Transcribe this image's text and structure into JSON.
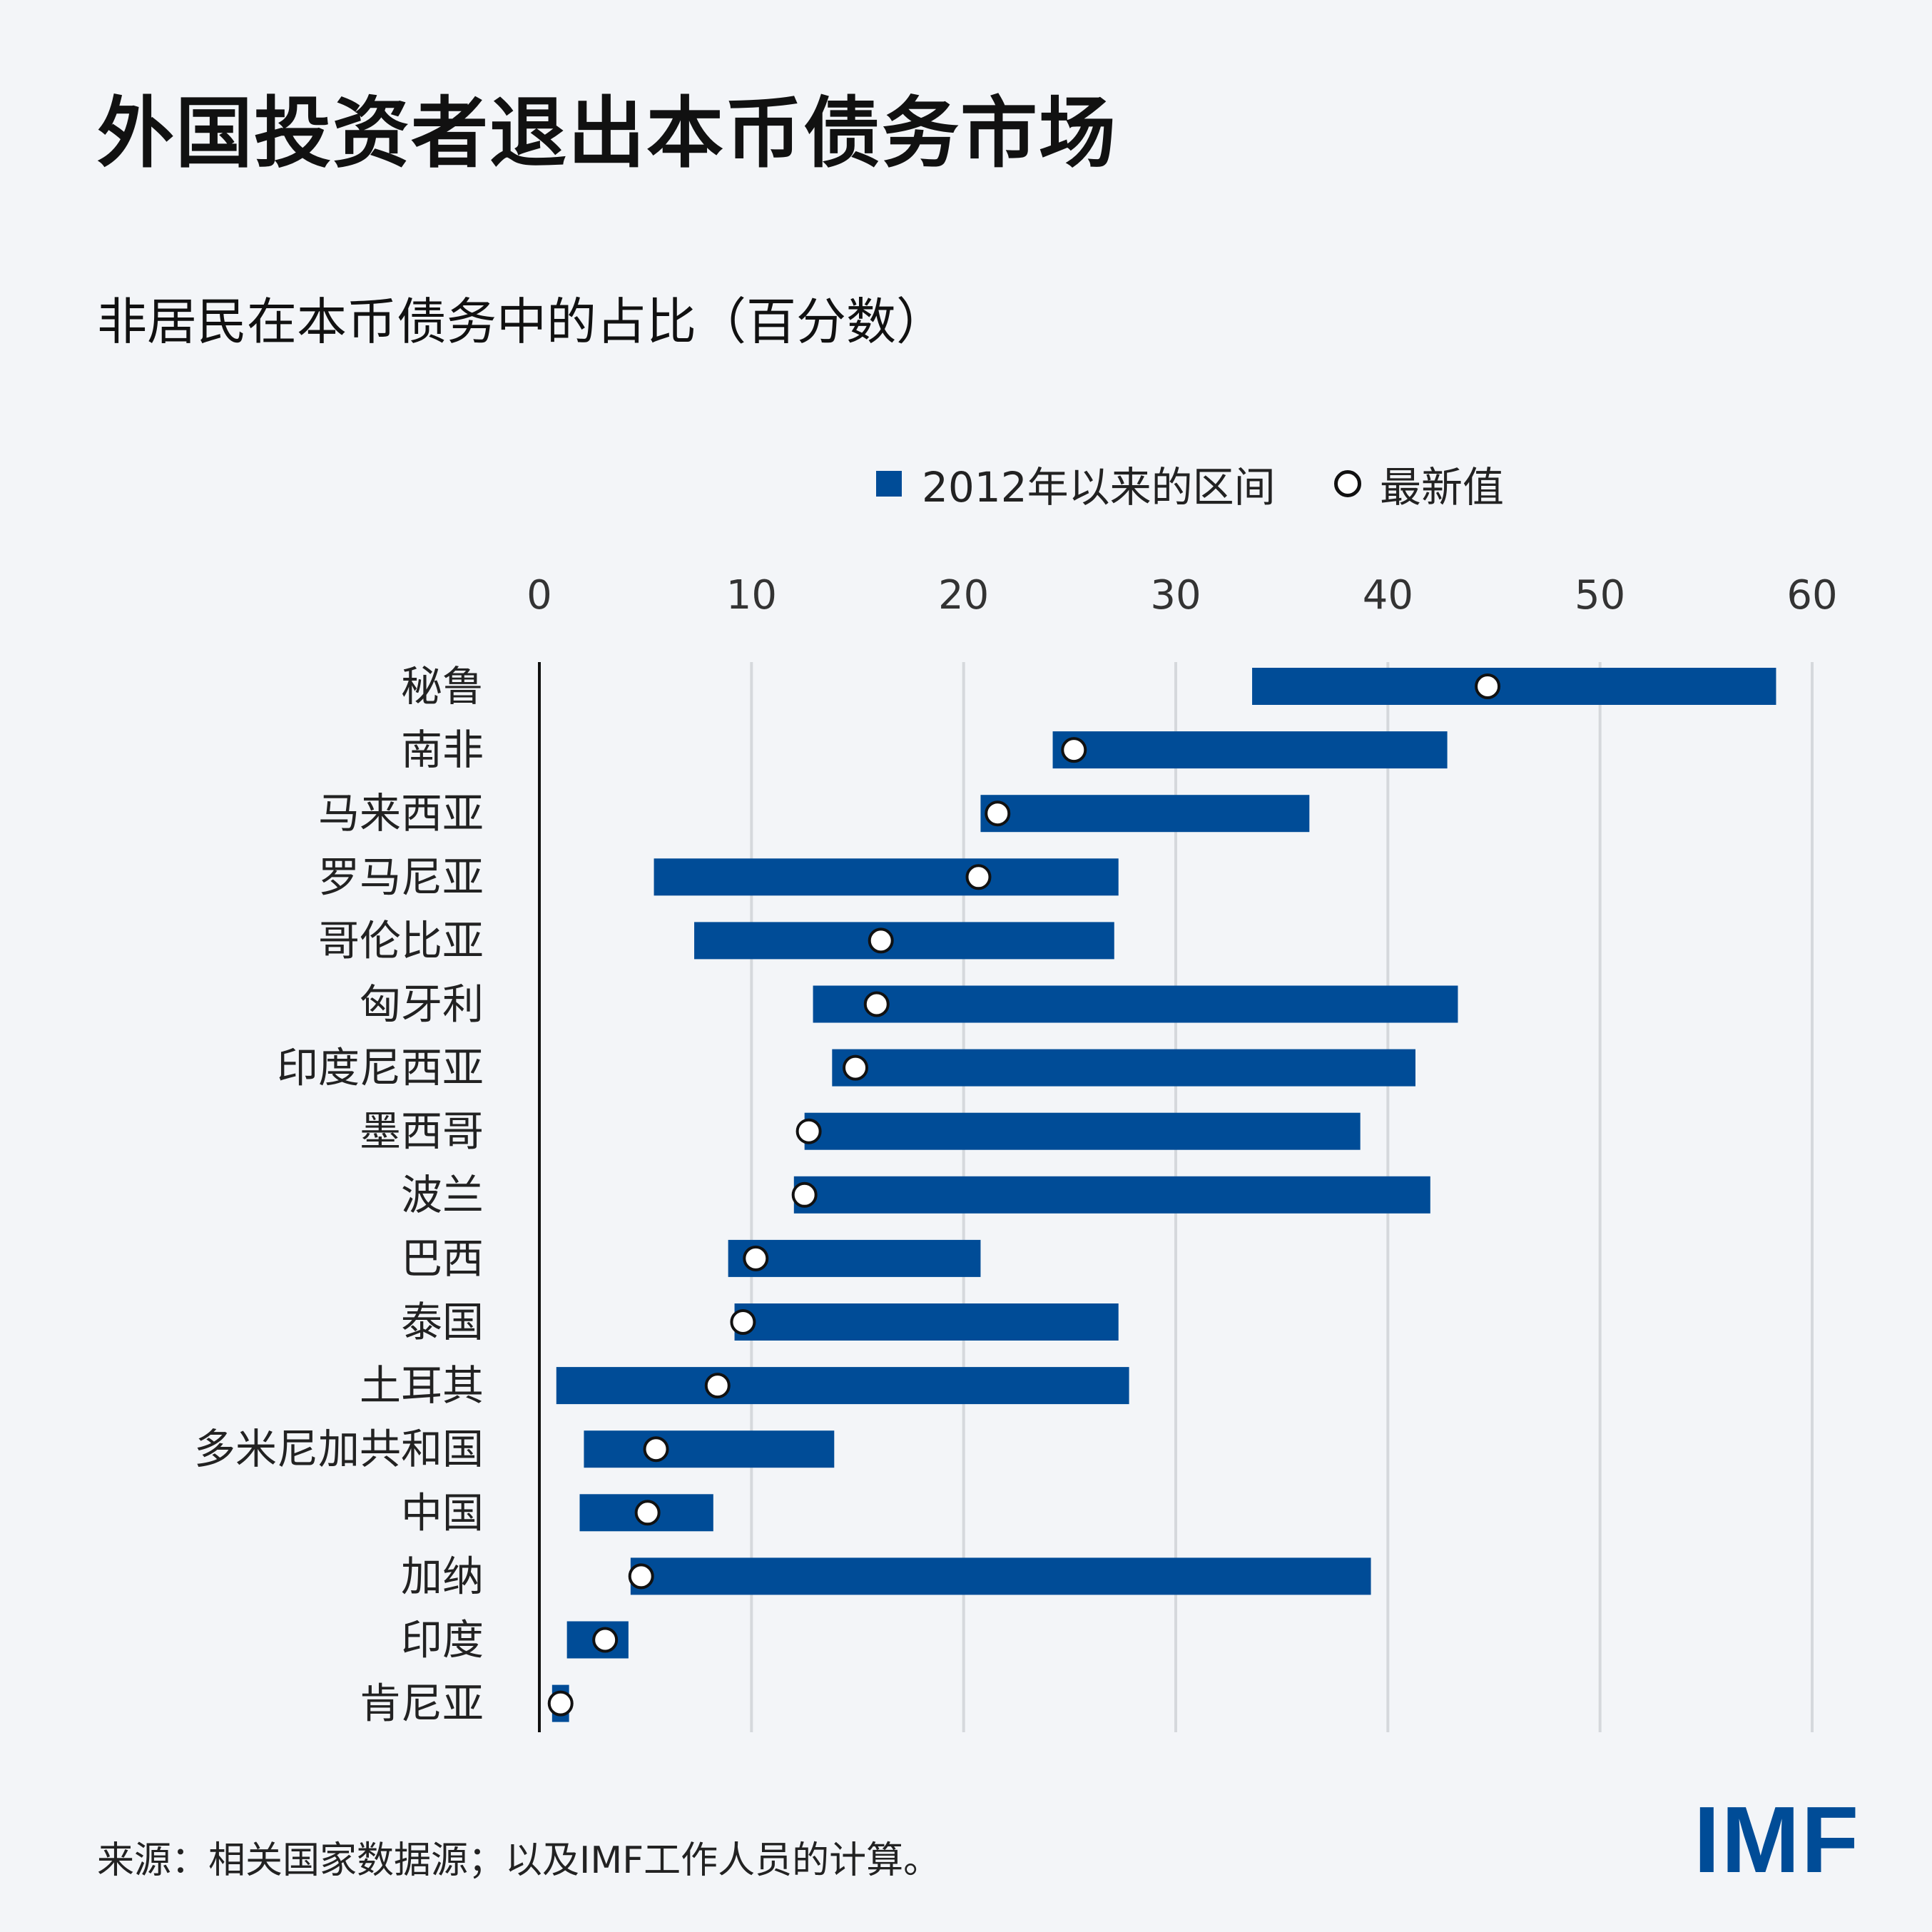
{
  "header": {
    "title": "外国投资者退出本币债务市场",
    "subtitle": "非居民在本币债务中的占比（百分数）"
  },
  "legend": {
    "range_label": "2012年以来的区间",
    "latest_label": "最新值"
  },
  "footer": {
    "source": "来源：相关国家数据源；以及IMF工作人员的计算。",
    "logo": "IMF"
  },
  "colors": {
    "bar": "#004c97",
    "grid": "#d5d8dc",
    "axis": "#111111",
    "dot_fill": "#ffffff",
    "background": "#f3f5f8"
  },
  "chart_data": {
    "type": "bar",
    "orientation": "horizontal",
    "xlim": [
      0,
      60
    ],
    "xticks": [
      0,
      10,
      20,
      30,
      40,
      50,
      60
    ],
    "grid": true,
    "legend_position": "top",
    "categories": [
      "秘鲁",
      "南非",
      "马来西亚",
      "罗马尼亚",
      "哥伦比亚",
      "匈牙利",
      "印度尼西亚",
      "墨西哥",
      "波兰",
      "巴西",
      "泰国",
      "土耳其",
      "多米尼加共和国",
      "中国",
      "加纳",
      "印度",
      "肯尼亚"
    ],
    "series": [
      {
        "name": "2012年以来的区间",
        "type": "range",
        "min": [
          33.6,
          24.2,
          20.8,
          5.4,
          7.3,
          12.9,
          13.8,
          12.5,
          12.0,
          8.9,
          9.2,
          0.8,
          2.1,
          1.9,
          4.3,
          1.3,
          0.6
        ],
        "max": [
          58.3,
          42.8,
          36.3,
          27.3,
          27.1,
          43.3,
          41.3,
          38.7,
          42.0,
          20.8,
          27.3,
          27.8,
          13.9,
          8.2,
          39.2,
          4.2,
          1.4
        ]
      },
      {
        "name": "最新值",
        "type": "point",
        "values": [
          44.7,
          25.2,
          21.6,
          20.7,
          16.1,
          15.9,
          14.9,
          12.7,
          12.5,
          10.2,
          9.6,
          8.4,
          5.5,
          5.1,
          4.8,
          3.1,
          1.0
        ]
      }
    ]
  }
}
